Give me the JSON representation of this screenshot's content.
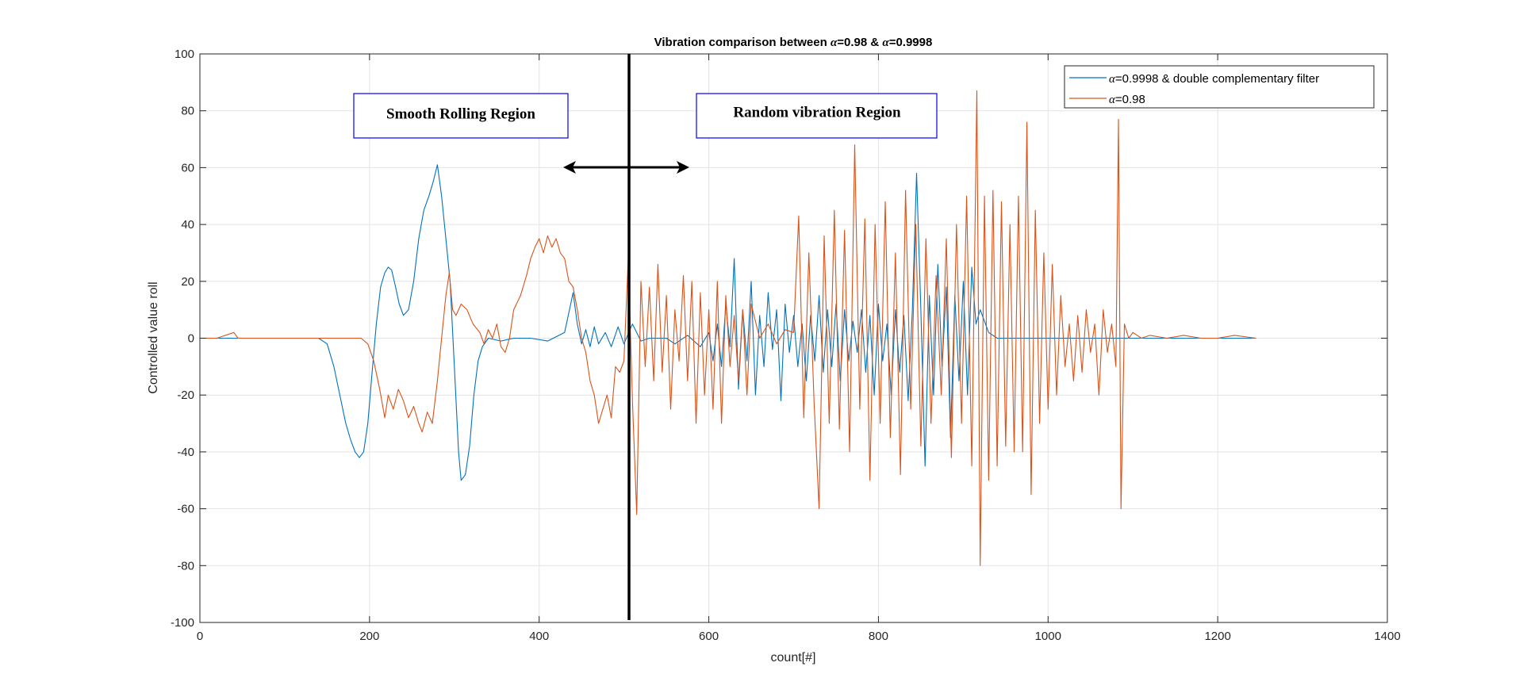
{
  "chart_data": {
    "type": "line",
    "title_prefix": "Vibration comparison between ",
    "title_alpha1": "α",
    "title_mid": "=0.98 & ",
    "title_alpha2": "α",
    "title_suffix": "=0.9998",
    "xlabel": "count[#]",
    "ylabel": "Controlled value roll",
    "xlim": [
      0,
      1400
    ],
    "ylim": [
      -100,
      100
    ],
    "xticks": [
      0,
      200,
      400,
      600,
      800,
      1000,
      1200,
      1400
    ],
    "yticks": [
      -100,
      -80,
      -60,
      -40,
      -20,
      0,
      20,
      40,
      60,
      80,
      100
    ],
    "grid": true,
    "legend_position": "top-right",
    "series": [
      {
        "name_alpha": "α",
        "name": "=0.9998 & double complementary filter",
        "color": "#0072BD",
        "points": [
          [
            0,
            0
          ],
          [
            60,
            0
          ],
          [
            100,
            0
          ],
          [
            140,
            0
          ],
          [
            150,
            -2
          ],
          [
            158,
            -10
          ],
          [
            165,
            -20
          ],
          [
            172,
            -30
          ],
          [
            178,
            -36
          ],
          [
            183,
            -40
          ],
          [
            188,
            -42
          ],
          [
            193,
            -40
          ],
          [
            198,
            -30
          ],
          [
            203,
            -12
          ],
          [
            208,
            5
          ],
          [
            213,
            18
          ],
          [
            218,
            23
          ],
          [
            222,
            25
          ],
          [
            226,
            24
          ],
          [
            230,
            19
          ],
          [
            235,
            12
          ],
          [
            240,
            8
          ],
          [
            246,
            10
          ],
          [
            252,
            20
          ],
          [
            258,
            35
          ],
          [
            264,
            45
          ],
          [
            270,
            50
          ],
          [
            275,
            55
          ],
          [
            280,
            61
          ],
          [
            285,
            50
          ],
          [
            290,
            35
          ],
          [
            295,
            20
          ],
          [
            300,
            -10
          ],
          [
            305,
            -40
          ],
          [
            308,
            -50
          ],
          [
            313,
            -48
          ],
          [
            318,
            -38
          ],
          [
            323,
            -20
          ],
          [
            328,
            -8
          ],
          [
            333,
            -3
          ],
          [
            340,
            0
          ],
          [
            355,
            -1
          ],
          [
            370,
            0
          ],
          [
            390,
            0
          ],
          [
            410,
            -1
          ],
          [
            430,
            2
          ],
          [
            440,
            16
          ],
          [
            445,
            5
          ],
          [
            450,
            -2
          ],
          [
            455,
            3
          ],
          [
            460,
            -3
          ],
          [
            465,
            4
          ],
          [
            470,
            -2
          ],
          [
            478,
            2
          ],
          [
            485,
            -3
          ],
          [
            493,
            4
          ],
          [
            500,
            -2
          ],
          [
            510,
            5
          ],
          [
            520,
            -1
          ],
          [
            530,
            0
          ],
          [
            550,
            0
          ],
          [
            560,
            -2
          ],
          [
            575,
            1
          ],
          [
            590,
            -3
          ],
          [
            600,
            2
          ],
          [
            605,
            -8
          ],
          [
            610,
            5
          ],
          [
            615,
            -10
          ],
          [
            620,
            12
          ],
          [
            625,
            -3
          ],
          [
            630,
            28
          ],
          [
            635,
            -18
          ],
          [
            640,
            10
          ],
          [
            645,
            -8
          ],
          [
            650,
            20
          ],
          [
            655,
            -20
          ],
          [
            660,
            8
          ],
          [
            665,
            -10
          ],
          [
            670,
            16
          ],
          [
            675,
            -4
          ],
          [
            680,
            10
          ],
          [
            685,
            -22
          ],
          [
            690,
            12
          ],
          [
            695,
            -5
          ],
          [
            700,
            8
          ],
          [
            705,
            -10
          ],
          [
            710,
            5
          ],
          [
            715,
            -15
          ],
          [
            720,
            8
          ],
          [
            725,
            -8
          ],
          [
            730,
            15
          ],
          [
            735,
            -12
          ],
          [
            740,
            10
          ],
          [
            745,
            -10
          ],
          [
            750,
            12
          ],
          [
            755,
            -15
          ],
          [
            760,
            10
          ],
          [
            765,
            -8
          ],
          [
            770,
            6
          ],
          [
            775,
            -5
          ],
          [
            780,
            10
          ],
          [
            785,
            -12
          ],
          [
            790,
            8
          ],
          [
            795,
            -20
          ],
          [
            800,
            12
          ],
          [
            805,
            -8
          ],
          [
            810,
            5
          ],
          [
            815,
            -20
          ],
          [
            820,
            10
          ],
          [
            825,
            -12
          ],
          [
            830,
            8
          ],
          [
            835,
            -22
          ],
          [
            840,
            10
          ],
          [
            845,
            58
          ],
          [
            850,
            10
          ],
          [
            855,
            -45
          ],
          [
            860,
            15
          ],
          [
            865,
            -20
          ],
          [
            870,
            26
          ],
          [
            875,
            -10
          ],
          [
            880,
            18
          ],
          [
            885,
            -35
          ],
          [
            890,
            15
          ],
          [
            895,
            -15
          ],
          [
            900,
            20
          ],
          [
            905,
            -20
          ],
          [
            910,
            25
          ],
          [
            915,
            5
          ],
          [
            920,
            10
          ],
          [
            930,
            2
          ],
          [
            940,
            0
          ],
          [
            960,
            0
          ],
          [
            1000,
            0
          ],
          [
            1100,
            0
          ],
          [
            1200,
            0
          ],
          [
            1245,
            0
          ]
        ]
      },
      {
        "name_alpha": "α",
        "name": "=0.98",
        "color": "#D95319",
        "points": [
          [
            0,
            0
          ],
          [
            20,
            0
          ],
          [
            40,
            2
          ],
          [
            45,
            0
          ],
          [
            80,
            0
          ],
          [
            120,
            0
          ],
          [
            150,
            0
          ],
          [
            170,
            0
          ],
          [
            190,
            0
          ],
          [
            198,
            -2
          ],
          [
            205,
            -8
          ],
          [
            212,
            -18
          ],
          [
            218,
            -28
          ],
          [
            222,
            -20
          ],
          [
            228,
            -25
          ],
          [
            234,
            -18
          ],
          [
            240,
            -22
          ],
          [
            246,
            -28
          ],
          [
            252,
            -24
          ],
          [
            258,
            -30
          ],
          [
            262,
            -33
          ],
          [
            268,
            -26
          ],
          [
            274,
            -30
          ],
          [
            280,
            -15
          ],
          [
            285,
            0
          ],
          [
            290,
            15
          ],
          [
            294,
            23
          ],
          [
            298,
            10
          ],
          [
            302,
            8
          ],
          [
            308,
            12
          ],
          [
            315,
            10
          ],
          [
            322,
            5
          ],
          [
            330,
            2
          ],
          [
            335,
            -2
          ],
          [
            340,
            3
          ],
          [
            345,
            0
          ],
          [
            350,
            5
          ],
          [
            355,
            -3
          ],
          [
            360,
            -5
          ],
          [
            365,
            0
          ],
          [
            370,
            10
          ],
          [
            378,
            15
          ],
          [
            385,
            22
          ],
          [
            390,
            28
          ],
          [
            395,
            32
          ],
          [
            400,
            35
          ],
          [
            405,
            30
          ],
          [
            410,
            36
          ],
          [
            415,
            32
          ],
          [
            420,
            35
          ],
          [
            425,
            30
          ],
          [
            430,
            28
          ],
          [
            435,
            20
          ],
          [
            440,
            18
          ],
          [
            445,
            10
          ],
          [
            450,
            0
          ],
          [
            455,
            -5
          ],
          [
            460,
            -15
          ],
          [
            465,
            -20
          ],
          [
            470,
            -30
          ],
          [
            475,
            -25
          ],
          [
            480,
            -20
          ],
          [
            485,
            -28
          ],
          [
            490,
            -10
          ],
          [
            495,
            -12
          ],
          [
            500,
            -8
          ],
          [
            505,
            28
          ],
          [
            510,
            -22
          ],
          [
            515,
            -62
          ],
          [
            520,
            20
          ],
          [
            525,
            -10
          ],
          [
            530,
            18
          ],
          [
            535,
            -15
          ],
          [
            540,
            26
          ],
          [
            545,
            -12
          ],
          [
            550,
            15
          ],
          [
            555,
            -25
          ],
          [
            560,
            10
          ],
          [
            565,
            -8
          ],
          [
            570,
            22
          ],
          [
            575,
            -15
          ],
          [
            580,
            20
          ],
          [
            585,
            -30
          ],
          [
            590,
            16
          ],
          [
            595,
            -20
          ],
          [
            600,
            10
          ],
          [
            605,
            -25
          ],
          [
            610,
            20
          ],
          [
            615,
            -30
          ],
          [
            620,
            15
          ],
          [
            625,
            -10
          ],
          [
            630,
            8
          ],
          [
            635,
            -15
          ],
          [
            640,
            10
          ],
          [
            645,
            -20
          ],
          [
            650,
            12
          ],
          [
            660,
            0
          ],
          [
            670,
            5
          ],
          [
            680,
            -2
          ],
          [
            690,
            3
          ],
          [
            700,
            2
          ],
          [
            706,
            43
          ],
          [
            712,
            -28
          ],
          [
            718,
            30
          ],
          [
            724,
            -22
          ],
          [
            730,
            -60
          ],
          [
            736,
            36
          ],
          [
            742,
            -30
          ],
          [
            748,
            45
          ],
          [
            754,
            -32
          ],
          [
            760,
            38
          ],
          [
            766,
            -40
          ],
          [
            772,
            68
          ],
          [
            778,
            -25
          ],
          [
            784,
            42
          ],
          [
            790,
            -50
          ],
          [
            796,
            40
          ],
          [
            802,
            -30
          ],
          [
            808,
            48
          ],
          [
            814,
            -35
          ],
          [
            820,
            30
          ],
          [
            826,
            -48
          ],
          [
            832,
            52
          ],
          [
            838,
            -25
          ],
          [
            844,
            40
          ],
          [
            850,
            -38
          ],
          [
            856,
            35
          ],
          [
            862,
            -30
          ],
          [
            868,
            22
          ],
          [
            874,
            -20
          ],
          [
            880,
            35
          ],
          [
            886,
            -42
          ],
          [
            892,
            40
          ],
          [
            898,
            -30
          ],
          [
            904,
            50
          ],
          [
            910,
            -45
          ],
          [
            916,
            87
          ],
          [
            920,
            -80
          ],
          [
            925,
            50
          ],
          [
            930,
            -50
          ],
          [
            935,
            52
          ],
          [
            940,
            -45
          ],
          [
            945,
            48
          ],
          [
            950,
            -38
          ],
          [
            955,
            40
          ],
          [
            960,
            -40
          ],
          [
            965,
            50
          ],
          [
            970,
            -40
          ],
          [
            975,
            76
          ],
          [
            980,
            -55
          ],
          [
            985,
            45
          ],
          [
            990,
            -30
          ],
          [
            995,
            30
          ],
          [
            1000,
            -25
          ],
          [
            1005,
            26
          ],
          [
            1010,
            -20
          ],
          [
            1015,
            15
          ],
          [
            1020,
            -10
          ],
          [
            1025,
            5
          ],
          [
            1030,
            -15
          ],
          [
            1035,
            8
          ],
          [
            1040,
            -12
          ],
          [
            1045,
            10
          ],
          [
            1050,
            -5
          ],
          [
            1055,
            5
          ],
          [
            1060,
            -20
          ],
          [
            1065,
            10
          ],
          [
            1070,
            -5
          ],
          [
            1075,
            5
          ],
          [
            1080,
            -10
          ],
          [
            1083,
            77
          ],
          [
            1086,
            -60
          ],
          [
            1090,
            5
          ],
          [
            1095,
            0
          ],
          [
            1100,
            2
          ],
          [
            1110,
            0
          ],
          [
            1120,
            1
          ],
          [
            1140,
            0
          ],
          [
            1160,
            1
          ],
          [
            1180,
            0
          ],
          [
            1200,
            0
          ],
          [
            1220,
            1
          ],
          [
            1245,
            0
          ]
        ]
      }
    ],
    "annotations": {
      "left_region": "Smooth Rolling Region",
      "right_region": "Random vibration Region"
    }
  }
}
